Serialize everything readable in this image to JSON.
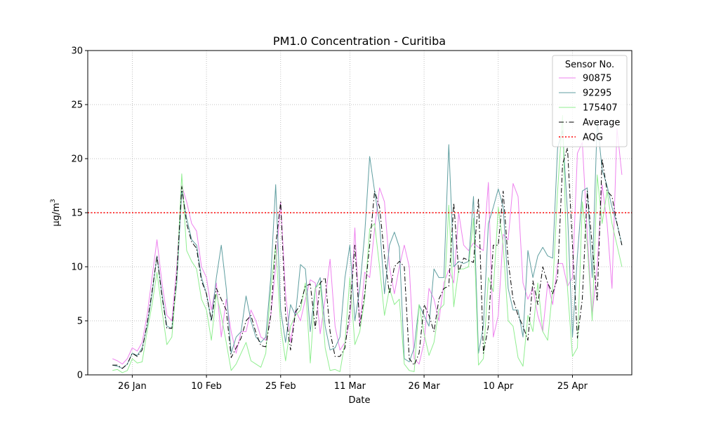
{
  "chart_data": {
    "type": "line",
    "title": "PM1.0 Concentration - Curitiba",
    "xlabel": "Date",
    "ylabel": "µg/m",
    "ylabel_superscript": "3",
    "ylim": [
      0,
      30
    ],
    "yticks": [
      0,
      5,
      10,
      15,
      20,
      25,
      30
    ],
    "xlim": [
      "2025-01-17",
      "2025-05-07"
    ],
    "xticks": [
      {
        "date": "2025-01-26",
        "label": "26 Jan"
      },
      {
        "date": "2025-02-10",
        "label": "10 Feb"
      },
      {
        "date": "2025-02-25",
        "label": "25 Feb"
      },
      {
        "date": "2025-03-11",
        "label": "11 Mar"
      },
      {
        "date": "2025-03-26",
        "label": "26 Mar"
      },
      {
        "date": "2025-04-10",
        "label": "10 Apr"
      },
      {
        "date": "2025-04-25",
        "label": "25 Apr"
      }
    ],
    "grid": true,
    "legend": {
      "title": "Sensor No.",
      "placement": "top-right"
    },
    "x": [
      "2025-01-22",
      "2025-01-23",
      "2025-01-24",
      "2025-01-25",
      "2025-01-26",
      "2025-01-27",
      "2025-01-28",
      "2025-01-29",
      "2025-01-30",
      "2025-01-31",
      "2025-02-01",
      "2025-02-02",
      "2025-02-03",
      "2025-02-04",
      "2025-02-05",
      "2025-02-06",
      "2025-02-07",
      "2025-02-08",
      "2025-02-09",
      "2025-02-10",
      "2025-02-11",
      "2025-02-12",
      "2025-02-13",
      "2025-02-14",
      "2025-02-15",
      "2025-02-16",
      "2025-02-17",
      "2025-02-18",
      "2025-02-19",
      "2025-02-20",
      "2025-02-21",
      "2025-02-22",
      "2025-02-23",
      "2025-02-24",
      "2025-02-25",
      "2025-02-26",
      "2025-02-27",
      "2025-02-28",
      "2025-03-01",
      "2025-03-02",
      "2025-03-03",
      "2025-03-04",
      "2025-03-05",
      "2025-03-06",
      "2025-03-07",
      "2025-03-08",
      "2025-03-09",
      "2025-03-10",
      "2025-03-11",
      "2025-03-12",
      "2025-03-13",
      "2025-03-14",
      "2025-03-15",
      "2025-03-16",
      "2025-03-17",
      "2025-03-18",
      "2025-03-19",
      "2025-03-20",
      "2025-03-21",
      "2025-03-22",
      "2025-03-23",
      "2025-03-24",
      "2025-03-25",
      "2025-03-26",
      "2025-03-27",
      "2025-03-28",
      "2025-03-29",
      "2025-03-30",
      "2025-03-31",
      "2025-04-01",
      "2025-04-02",
      "2025-04-03",
      "2025-04-04",
      "2025-04-05",
      "2025-04-06",
      "2025-04-07",
      "2025-04-08",
      "2025-04-09",
      "2025-04-10",
      "2025-04-11",
      "2025-04-12",
      "2025-04-13",
      "2025-04-14",
      "2025-04-15",
      "2025-04-16",
      "2025-04-17",
      "2025-04-18",
      "2025-04-19",
      "2025-04-20",
      "2025-04-21",
      "2025-04-22",
      "2025-04-23",
      "2025-04-24",
      "2025-04-25",
      "2025-04-26",
      "2025-04-27",
      "2025-04-28",
      "2025-04-29",
      "2025-04-30",
      "2025-05-01",
      "2025-05-02",
      "2025-05-03",
      "2025-05-04",
      "2025-05-05"
    ],
    "series": [
      {
        "name": "90875",
        "color": "#ee82ee",
        "style": "solid",
        "width": 1,
        "values": [
          1.5,
          1.3,
          1.0,
          1.5,
          2.5,
          2.2,
          3.0,
          5.5,
          9.0,
          12.5,
          8.5,
          5.5,
          5.0,
          10.0,
          17.5,
          16.0,
          14.0,
          13.3,
          10.0,
          9.0,
          6.0,
          8.5,
          3.5,
          7.0,
          4.0,
          2.0,
          4.0,
          4.0,
          6.0,
          5.0,
          3.5,
          3.2,
          5.5,
          10.0,
          16.0,
          7.5,
          3.0,
          6.0,
          5.0,
          7.0,
          8.8,
          8.5,
          3.8,
          7.0,
          10.7,
          4.5,
          2.3,
          3.0,
          5.0,
          13.6,
          4.5,
          9.5,
          9.0,
          13.5,
          17.3,
          16.0,
          10.0,
          7.5,
          10.0,
          12.0,
          10.0,
          1.5,
          1.0,
          3.0,
          8.0,
          7.0,
          5.0,
          8.5,
          9.7,
          8.5,
          15.0,
          12.0,
          11.5,
          12.2,
          11.8,
          11.5,
          17.8,
          3.5,
          5.5,
          13.0,
          12.5,
          17.7,
          16.5,
          8.5,
          7.0,
          8.0,
          5.5,
          4.0,
          8.5,
          6.5,
          10.3,
          10.3,
          8.2,
          9.0,
          20.5,
          21.5,
          13.0,
          5.5,
          10.0,
          17.6,
          14.0,
          8.0,
          22.8,
          18.5
        ]
      },
      {
        "name": "92295",
        "color": "#5f9ea0",
        "style": "solid",
        "width": 1,
        "values": [
          0.9,
          0.8,
          0.6,
          1.0,
          2.0,
          1.8,
          2.5,
          4.5,
          7.5,
          11.0,
          7.5,
          4.5,
          4.3,
          8.5,
          17.0,
          14.5,
          12.5,
          12.0,
          9.0,
          7.5,
          5.0,
          9.0,
          12.0,
          8.0,
          2.0,
          3.5,
          4.0,
          7.3,
          5.0,
          3.5,
          3.0,
          3.5,
          9.0,
          17.6,
          6.0,
          3.0,
          6.5,
          5.5,
          10.2,
          9.8,
          4.0,
          8.0,
          9.0,
          4.5,
          2.3,
          2.5,
          3.5,
          9.0,
          12.0,
          5.0,
          8.0,
          13.0,
          20.2,
          17.0,
          14.0,
          7.5,
          12.0,
          13.2,
          11.8,
          1.5,
          1.2,
          2.5,
          6.5,
          5.5,
          4.5,
          9.8,
          9.0,
          9.0,
          21.3,
          10.0,
          10.5,
          10.3,
          10.5,
          16.5,
          2.0,
          4.5,
          14.0,
          15.5,
          17.2,
          15.5,
          8.0,
          6.0,
          6.0,
          3.5,
          11.5,
          9.0,
          11.0,
          11.8,
          11.0,
          10.8,
          21.0,
          22.6,
          15.0,
          3.5,
          11.0,
          17.0,
          17.3,
          9.0,
          23.5,
          19.0,
          17.5,
          15.5,
          14.0,
          12.0
        ]
      },
      {
        "name": "175407",
        "color": "#90ee90",
        "style": "solid",
        "width": 1,
        "values": [
          0.4,
          0.5,
          0.2,
          0.4,
          1.5,
          1.1,
          1.2,
          4.0,
          6.5,
          9.5,
          6.0,
          2.8,
          3.5,
          9.0,
          18.6,
          11.5,
          10.5,
          9.8,
          7.0,
          6.0,
          3.2,
          7.5,
          5.5,
          3.0,
          0.4,
          1.0,
          2.0,
          3.0,
          1.3,
          1.0,
          0.7,
          2.0,
          8.0,
          12.0,
          4.5,
          1.3,
          4.5,
          5.5,
          6.0,
          8.5,
          1.1,
          8.0,
          8.5,
          2.5,
          0.4,
          0.5,
          0.3,
          3.0,
          9.0,
          2.8,
          4.0,
          7.0,
          13.5,
          14.0,
          10.0,
          5.5,
          8.0,
          6.5,
          7.0,
          1.0,
          0.4,
          0.3,
          6.5,
          3.8,
          1.8,
          3.0,
          6.0,
          6.5,
          15.7,
          6.3,
          9.8,
          9.8,
          10.0,
          14.5,
          0.9,
          1.5,
          9.0,
          7.7,
          15.5,
          12.0,
          5.0,
          4.5,
          1.6,
          0.8,
          5.5,
          4.0,
          8.5,
          4.0,
          3.2,
          8.0,
          17.0,
          24.0,
          8.0,
          1.7,
          2.5,
          16.0,
          12.0,
          5.0,
          18.5,
          14.0,
          17.0,
          14.0,
          12.0,
          10.0
        ]
      },
      {
        "name": "Average",
        "color": "#000000",
        "style": "dashdot",
        "width": 1,
        "values": [
          0.9,
          0.9,
          0.6,
          1.0,
          2.0,
          1.7,
          2.3,
          4.7,
          7.7,
          11.0,
          7.3,
          4.3,
          4.3,
          9.2,
          17.4,
          14.0,
          12.3,
          11.7,
          8.7,
          7.5,
          5.0,
          8.0,
          7.0,
          6.0,
          1.6,
          2.5,
          3.4,
          5.0,
          5.5,
          3.9,
          2.7,
          2.6,
          5.5,
          12.0,
          16.0,
          5.6,
          2.3,
          5.8,
          6.5,
          8.2,
          8.4,
          4.3,
          8.5,
          9.0,
          4.0,
          1.7,
          1.7,
          2.5,
          6.0,
          12.0,
          4.5,
          7.5,
          12.0,
          17.0,
          15.5,
          11.0,
          7.5,
          10.0,
          10.5,
          10.0,
          1.5,
          0.9,
          2.0,
          6.5,
          5.5,
          4.0,
          7.0,
          8.0,
          8.2,
          15.9,
          9.5,
          10.8,
          10.6,
          10.4,
          16.3,
          2.0,
          4.5,
          12.0,
          12.0,
          17.0,
          10.5,
          7.0,
          5.5,
          4.5,
          3.2,
          8.7,
          6.5,
          10.0,
          8.5,
          7.5,
          9.0,
          19.5,
          21.0,
          12.0,
          3.4,
          7.0,
          17.0,
          12.0,
          6.8,
          20.0,
          17.0,
          16.5,
          14.0,
          12.0
        ]
      },
      {
        "name": "AQG",
        "color": "#ff0000",
        "style": "dotted",
        "width": 1.5,
        "constant": 15
      }
    ]
  }
}
